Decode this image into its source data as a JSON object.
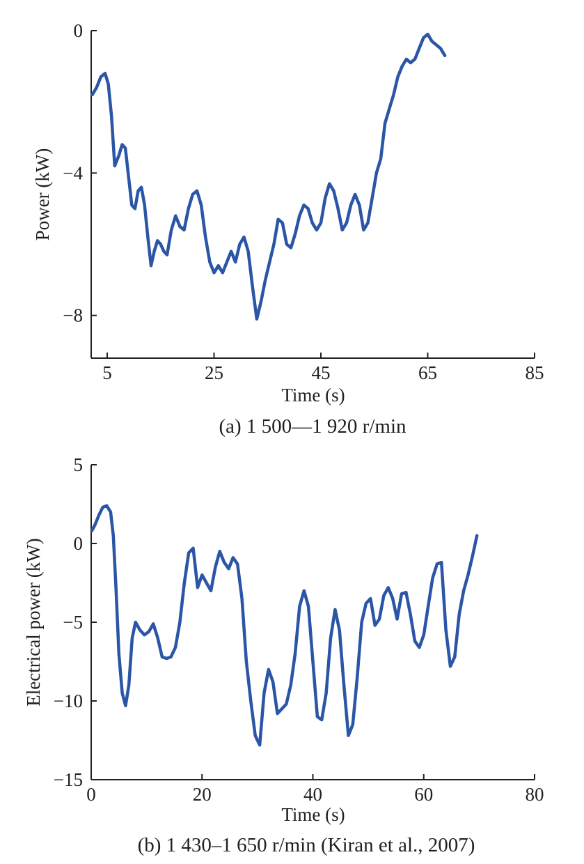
{
  "colors": {
    "series": "#2b55a6",
    "axis": "#231f20"
  },
  "chart_data": [
    {
      "type": "line",
      "caption": "(a) 1 500—1 920 r/min",
      "xlabel": "Time (s)",
      "ylabel": "Power (kW)",
      "xlim": [
        2,
        85
      ],
      "ylim": [
        -9.2,
        0
      ],
      "xticks": [
        5,
        25,
        45,
        65,
        85
      ],
      "xtick_labels": [
        "5",
        "25",
        "45",
        "65",
        "85"
      ],
      "yticks": [
        0,
        -4,
        -8
      ],
      "ytick_labels": [
        "0",
        "−4",
        "−8"
      ],
      "grid": false,
      "series": [
        {
          "name": "Power",
          "x": [
            2.2,
            3.0,
            3.8,
            4.6,
            5.2,
            5.8,
            6.4,
            7.2,
            7.8,
            8.4,
            9.0,
            9.6,
            10.2,
            10.8,
            11.4,
            12.0,
            12.6,
            13.2,
            13.8,
            14.4,
            15.0,
            15.6,
            16.2,
            17.0,
            17.8,
            18.6,
            19.4,
            20.2,
            21.0,
            21.8,
            22.6,
            23.4,
            24.2,
            25.0,
            25.8,
            26.6,
            27.4,
            28.2,
            29.0,
            29.8,
            30.6,
            31.4,
            32.2,
            33.0,
            33.8,
            34.6,
            35.4,
            36.2,
            37.0,
            37.8,
            38.6,
            39.4,
            40.2,
            41.0,
            41.8,
            42.6,
            43.4,
            44.2,
            45.0,
            45.8,
            46.6,
            47.4,
            48.2,
            49.0,
            49.8,
            50.6,
            51.4,
            52.2,
            53.0,
            53.8,
            54.6,
            55.4,
            56.2,
            57.0,
            57.8,
            58.6,
            59.4,
            60.2,
            61.0,
            61.8,
            62.6,
            63.4,
            64.2,
            65.0,
            65.8,
            66.6,
            67.4,
            68.2
          ],
          "y": [
            -1.8,
            -1.6,
            -1.3,
            -1.2,
            -1.5,
            -2.4,
            -3.8,
            -3.5,
            -3.2,
            -3.3,
            -4.1,
            -4.9,
            -5.0,
            -4.5,
            -4.4,
            -4.9,
            -5.8,
            -6.6,
            -6.2,
            -5.9,
            -6.0,
            -6.2,
            -6.3,
            -5.6,
            -5.2,
            -5.5,
            -5.6,
            -5.0,
            -4.6,
            -4.5,
            -4.9,
            -5.8,
            -6.5,
            -6.8,
            -6.6,
            -6.8,
            -6.5,
            -6.2,
            -6.5,
            -6.0,
            -5.8,
            -6.2,
            -7.2,
            -8.1,
            -7.6,
            -7.0,
            -6.5,
            -6.0,
            -5.3,
            -5.4,
            -6.0,
            -6.1,
            -5.7,
            -5.2,
            -4.9,
            -5.0,
            -5.4,
            -5.6,
            -5.4,
            -4.7,
            -4.3,
            -4.5,
            -5.0,
            -5.6,
            -5.4,
            -4.9,
            -4.6,
            -4.9,
            -5.6,
            -5.4,
            -4.7,
            -4.0,
            -3.6,
            -2.6,
            -2.2,
            -1.8,
            -1.3,
            -1.0,
            -0.8,
            -0.9,
            -0.8,
            -0.5,
            -0.2,
            -0.1,
            -0.3,
            -0.4,
            -0.5,
            -0.7
          ]
        }
      ]
    },
    {
      "type": "line",
      "caption": "(b) 1 430–1 650 r/min (Kiran et al., 2007)",
      "xlabel": "Time (s)",
      "ylabel": "Electrical power (kW)",
      "xlim": [
        0,
        80
      ],
      "ylim": [
        -15,
        5
      ],
      "xticks": [
        0,
        20,
        40,
        60,
        80
      ],
      "xtick_labels": [
        "0",
        "20",
        "40",
        "60",
        "80"
      ],
      "yticks": [
        5,
        0,
        -5,
        -10,
        -15
      ],
      "ytick_labels": [
        "5",
        "0",
        "−5",
        "−10",
        "−15"
      ],
      "grid": false,
      "series": [
        {
          "name": "Electrical power",
          "x": [
            0.1,
            0.7,
            1.4,
            2.1,
            2.8,
            3.5,
            4.0,
            4.5,
            5.0,
            5.6,
            6.2,
            6.8,
            7.4,
            8.0,
            8.8,
            9.6,
            10.4,
            11.2,
            12.0,
            12.8,
            13.6,
            14.4,
            15.2,
            16.0,
            16.8,
            17.6,
            18.4,
            19.2,
            20.0,
            20.8,
            21.6,
            22.4,
            23.2,
            24.0,
            24.8,
            25.6,
            26.4,
            27.2,
            28.0,
            28.8,
            29.6,
            30.4,
            31.2,
            32.0,
            32.8,
            33.6,
            34.4,
            35.2,
            36.0,
            36.8,
            37.6,
            38.4,
            39.2,
            40.0,
            40.8,
            41.6,
            42.4,
            43.2,
            44.0,
            44.8,
            45.6,
            46.4,
            47.2,
            48.0,
            48.8,
            49.6,
            50.4,
            51.2,
            52.0,
            52.8,
            53.6,
            54.4,
            55.2,
            56.0,
            56.8,
            57.6,
            58.4,
            59.2,
            60.0,
            60.8,
            61.6,
            62.4,
            63.2,
            64.0,
            64.8,
            65.6,
            66.4,
            67.2,
            68.0,
            68.8,
            69.6
          ],
          "y": [
            0.8,
            1.2,
            1.8,
            2.3,
            2.4,
            2.0,
            0.5,
            -3.0,
            -7.0,
            -9.5,
            -10.3,
            -9.0,
            -6.0,
            -5.0,
            -5.5,
            -5.8,
            -5.6,
            -5.1,
            -6.0,
            -7.2,
            -7.3,
            -7.2,
            -6.6,
            -5.0,
            -2.5,
            -0.6,
            -0.3,
            -2.8,
            -2.0,
            -2.5,
            -3.0,
            -1.5,
            -0.5,
            -1.2,
            -1.6,
            -0.9,
            -1.3,
            -3.5,
            -7.5,
            -10.0,
            -12.2,
            -12.8,
            -9.5,
            -8.0,
            -8.8,
            -10.8,
            -10.5,
            -10.2,
            -9.0,
            -7.0,
            -4.0,
            -3.0,
            -4.0,
            -7.5,
            -11.0,
            -11.2,
            -9.5,
            -6.0,
            -4.2,
            -5.5,
            -9.0,
            -12.2,
            -11.5,
            -8.5,
            -5.0,
            -3.8,
            -3.5,
            -5.2,
            -4.8,
            -3.3,
            -2.8,
            -3.5,
            -4.8,
            -3.2,
            -3.1,
            -4.5,
            -6.2,
            -6.6,
            -5.8,
            -4.0,
            -2.2,
            -1.3,
            -1.2,
            -5.5,
            -7.8,
            -7.2,
            -4.5,
            -3.0,
            -2.0,
            -0.8,
            0.5
          ]
        }
      ]
    }
  ]
}
